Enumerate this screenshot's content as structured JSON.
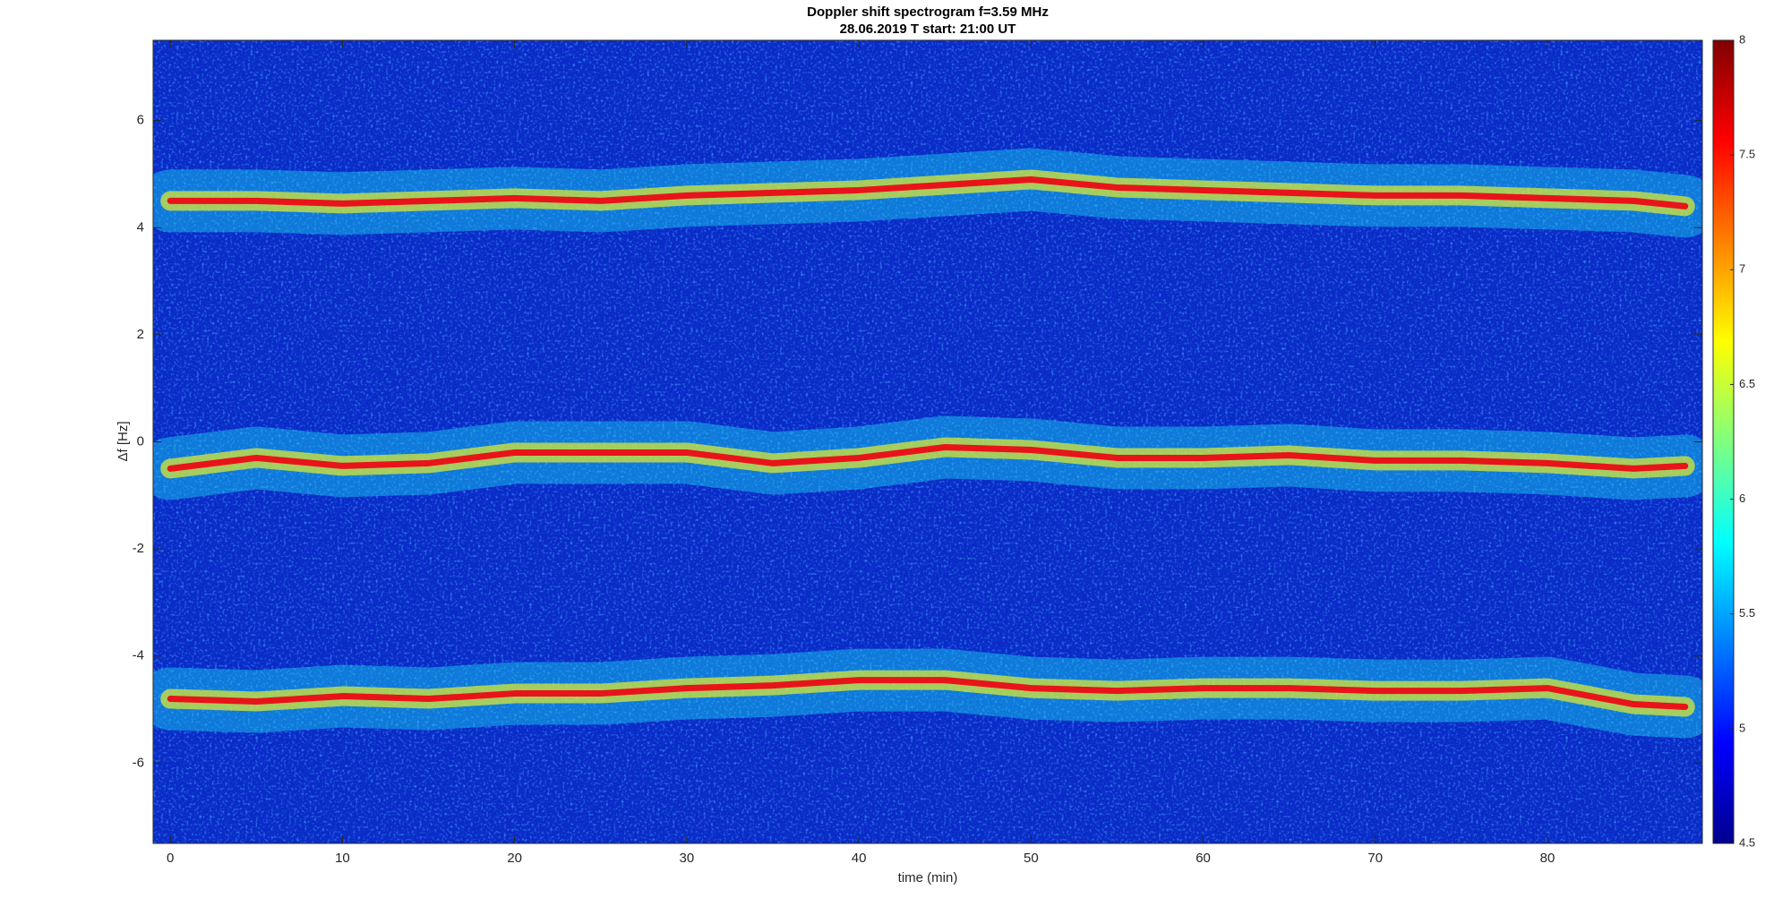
{
  "chart_data": {
    "type": "spectrogram",
    "title": "Doppler shift spectrogram f=3.59 MHz",
    "subtitle": "28.06.2019   T start: 21:00 UT",
    "x_label": "time (min)",
    "y_label": "Δf [Hz]",
    "xlim": [
      -1,
      89
    ],
    "ylim": [
      -7.5,
      7.5
    ],
    "xticks": [
      0,
      10,
      20,
      30,
      40,
      50,
      60,
      70,
      80
    ],
    "yticks": [
      -6,
      -4,
      -2,
      0,
      2,
      4,
      6
    ],
    "clim": [
      4.5,
      8
    ],
    "cticks": [
      4.5,
      5,
      5.5,
      6,
      6.5,
      7,
      7.5,
      8
    ],
    "colormap": "jet",
    "x": [
      0,
      5,
      10,
      15,
      20,
      25,
      30,
      35,
      40,
      45,
      50,
      55,
      60,
      65,
      70,
      75,
      80,
      85,
      88
    ],
    "series": [
      {
        "color": "#e8141a",
        "values": [
          4.5,
          4.5,
          4.45,
          4.5,
          4.55,
          4.5,
          4.6,
          4.65,
          4.7,
          4.8,
          4.9,
          4.75,
          4.7,
          4.65,
          4.6,
          4.6,
          4.55,
          4.5,
          4.4
        ]
      },
      {
        "color": "#e8141a",
        "values": [
          -0.5,
          -0.3,
          -0.45,
          -0.4,
          -0.2,
          -0.2,
          -0.2,
          -0.4,
          -0.3,
          -0.1,
          -0.15,
          -0.3,
          -0.3,
          -0.25,
          -0.35,
          -0.35,
          -0.4,
          -0.5,
          -0.45
        ]
      },
      {
        "color": "#e8141a",
        "values": [
          -4.8,
          -4.85,
          -4.75,
          -4.8,
          -4.7,
          -4.7,
          -4.6,
          -4.55,
          -4.45,
          -4.45,
          -4.6,
          -4.65,
          -4.6,
          -4.6,
          -4.65,
          -4.65,
          -4.6,
          -4.9,
          -4.95
        ]
      }
    ]
  }
}
